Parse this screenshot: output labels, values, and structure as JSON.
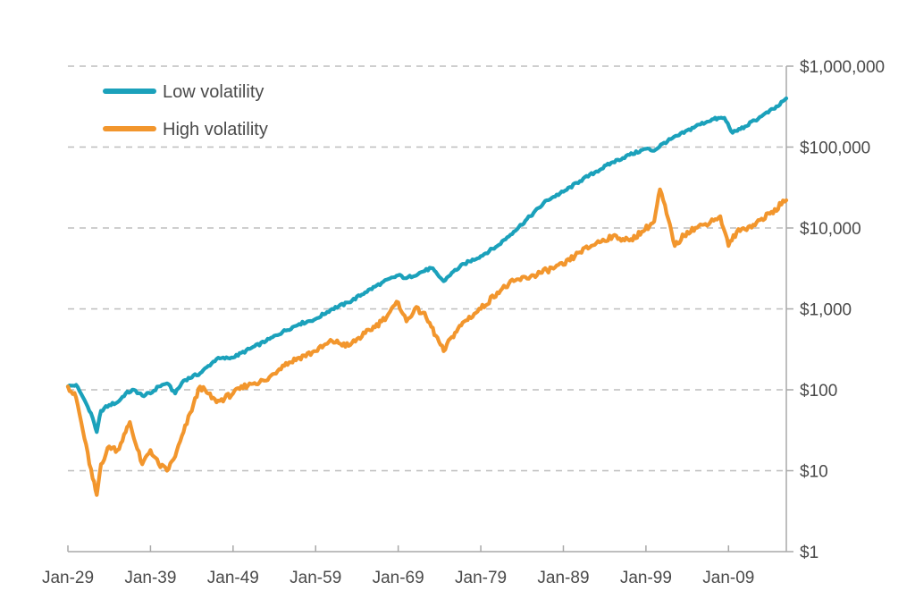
{
  "colors": {
    "low_volatility": "#1ba1bb",
    "high_volatility": "#f2962d",
    "grid": "#bdbdbd",
    "axis": "#a8a8a8",
    "text": "#4a4a4a"
  },
  "chart_data": {
    "type": "line",
    "title": "",
    "xlabel": "",
    "ylabel": "",
    "y_scale": "log",
    "ylim": [
      1,
      1000000
    ],
    "xlim": [
      1929,
      2016
    ],
    "grid": "horizontal-dashed",
    "legend_position": "top-left",
    "x_ticks": [
      {
        "value": 1929,
        "label": "Jan-29"
      },
      {
        "value": 1939,
        "label": "Jan-39"
      },
      {
        "value": 1949,
        "label": "Jan-49"
      },
      {
        "value": 1959,
        "label": "Jan-59"
      },
      {
        "value": 1969,
        "label": "Jan-69"
      },
      {
        "value": 1979,
        "label": "Jan-79"
      },
      {
        "value": 1989,
        "label": "Jan-89"
      },
      {
        "value": 1999,
        "label": "Jan-99"
      },
      {
        "value": 2009,
        "label": "Jan-09"
      }
    ],
    "y_ticks": [
      {
        "value": 1,
        "label": "$1"
      },
      {
        "value": 10,
        "label": "$10"
      },
      {
        "value": 100,
        "label": "$100"
      },
      {
        "value": 1000,
        "label": "$1,000"
      },
      {
        "value": 10000,
        "label": "$10,000"
      },
      {
        "value": 100000,
        "label": "$100,000"
      },
      {
        "value": 1000000,
        "label": "$1,000,000"
      }
    ],
    "series": [
      {
        "name": "Low volatility",
        "key": "low_volatility",
        "x": [
          1929.0,
          1930.0,
          1931.0,
          1932.0,
          1932.5,
          1933.0,
          1934.0,
          1935.0,
          1936.0,
          1937.0,
          1938.0,
          1939.0,
          1940.0,
          1941.0,
          1942.0,
          1943.0,
          1945.0,
          1947.0,
          1949.0,
          1951.0,
          1953.0,
          1955.0,
          1957.0,
          1959.0,
          1961.0,
          1963.0,
          1965.0,
          1967.0,
          1969.0,
          1970.0,
          1972.0,
          1973.0,
          1974.5,
          1975.5,
          1977.0,
          1979.0,
          1981.0,
          1983.0,
          1985.0,
          1987.0,
          1989.0,
          1991.0,
          1993.0,
          1995.0,
          1997.0,
          1999.0,
          2000.0,
          2001.0,
          2003.0,
          2005.0,
          2007.0,
          2008.5,
          2009.5,
          2011.0,
          2013.0,
          2015.0,
          2016.0
        ],
        "values": [
          110,
          115,
          75,
          45,
          30,
          55,
          65,
          70,
          90,
          100,
          85,
          90,
          110,
          120,
          90,
          130,
          160,
          240,
          250,
          320,
          400,
          520,
          650,
          750,
          1000,
          1200,
          1600,
          2100,
          2600,
          2400,
          2900,
          3200,
          2200,
          2800,
          3600,
          4500,
          6000,
          9000,
          14000,
          22000,
          28000,
          38000,
          50000,
          65000,
          80000,
          95000,
          90000,
          110000,
          140000,
          180000,
          220000,
          230000,
          150000,
          180000,
          240000,
          320000,
          400000
        ]
      },
      {
        "name": "High volatility",
        "key": "high_volatility",
        "x": [
          1929.0,
          1930.0,
          1931.0,
          1932.0,
          1932.5,
          1933.0,
          1934.0,
          1935.0,
          1936.0,
          1936.5,
          1937.0,
          1938.0,
          1939.0,
          1940.0,
          1941.0,
          1942.0,
          1943.0,
          1945.0,
          1947.0,
          1949.0,
          1951.0,
          1953.0,
          1955.0,
          1957.0,
          1959.0,
          1961.0,
          1963.0,
          1965.0,
          1967.0,
          1969.0,
          1970.0,
          1971.0,
          1972.0,
          1973.0,
          1974.5,
          1975.5,
          1977.0,
          1979.0,
          1981.0,
          1983.0,
          1985.0,
          1987.0,
          1989.0,
          1991.0,
          1993.0,
          1995.0,
          1997.0,
          1998.5,
          2000.0,
          2000.7,
          2001.5,
          2002.5,
          2004.0,
          2006.0,
          2008.0,
          2009.0,
          2010.0,
          2012.0,
          2014.0,
          2016.0
        ],
        "values": [
          110,
          80,
          25,
          8,
          5,
          12,
          20,
          18,
          30,
          40,
          25,
          12,
          18,
          12,
          10,
          15,
          30,
          110,
          70,
          90,
          120,
          130,
          200,
          250,
          300,
          400,
          350,
          500,
          700,
          1200,
          700,
          1000,
          900,
          600,
          300,
          450,
          700,
          1000,
          1600,
          2200,
          2500,
          3000,
          3500,
          5000,
          6500,
          8000,
          7000,
          9000,
          12000,
          30000,
          15000,
          6000,
          9000,
          11000,
          14000,
          6000,
          9000,
          11000,
          15000,
          22000
        ]
      }
    ]
  }
}
